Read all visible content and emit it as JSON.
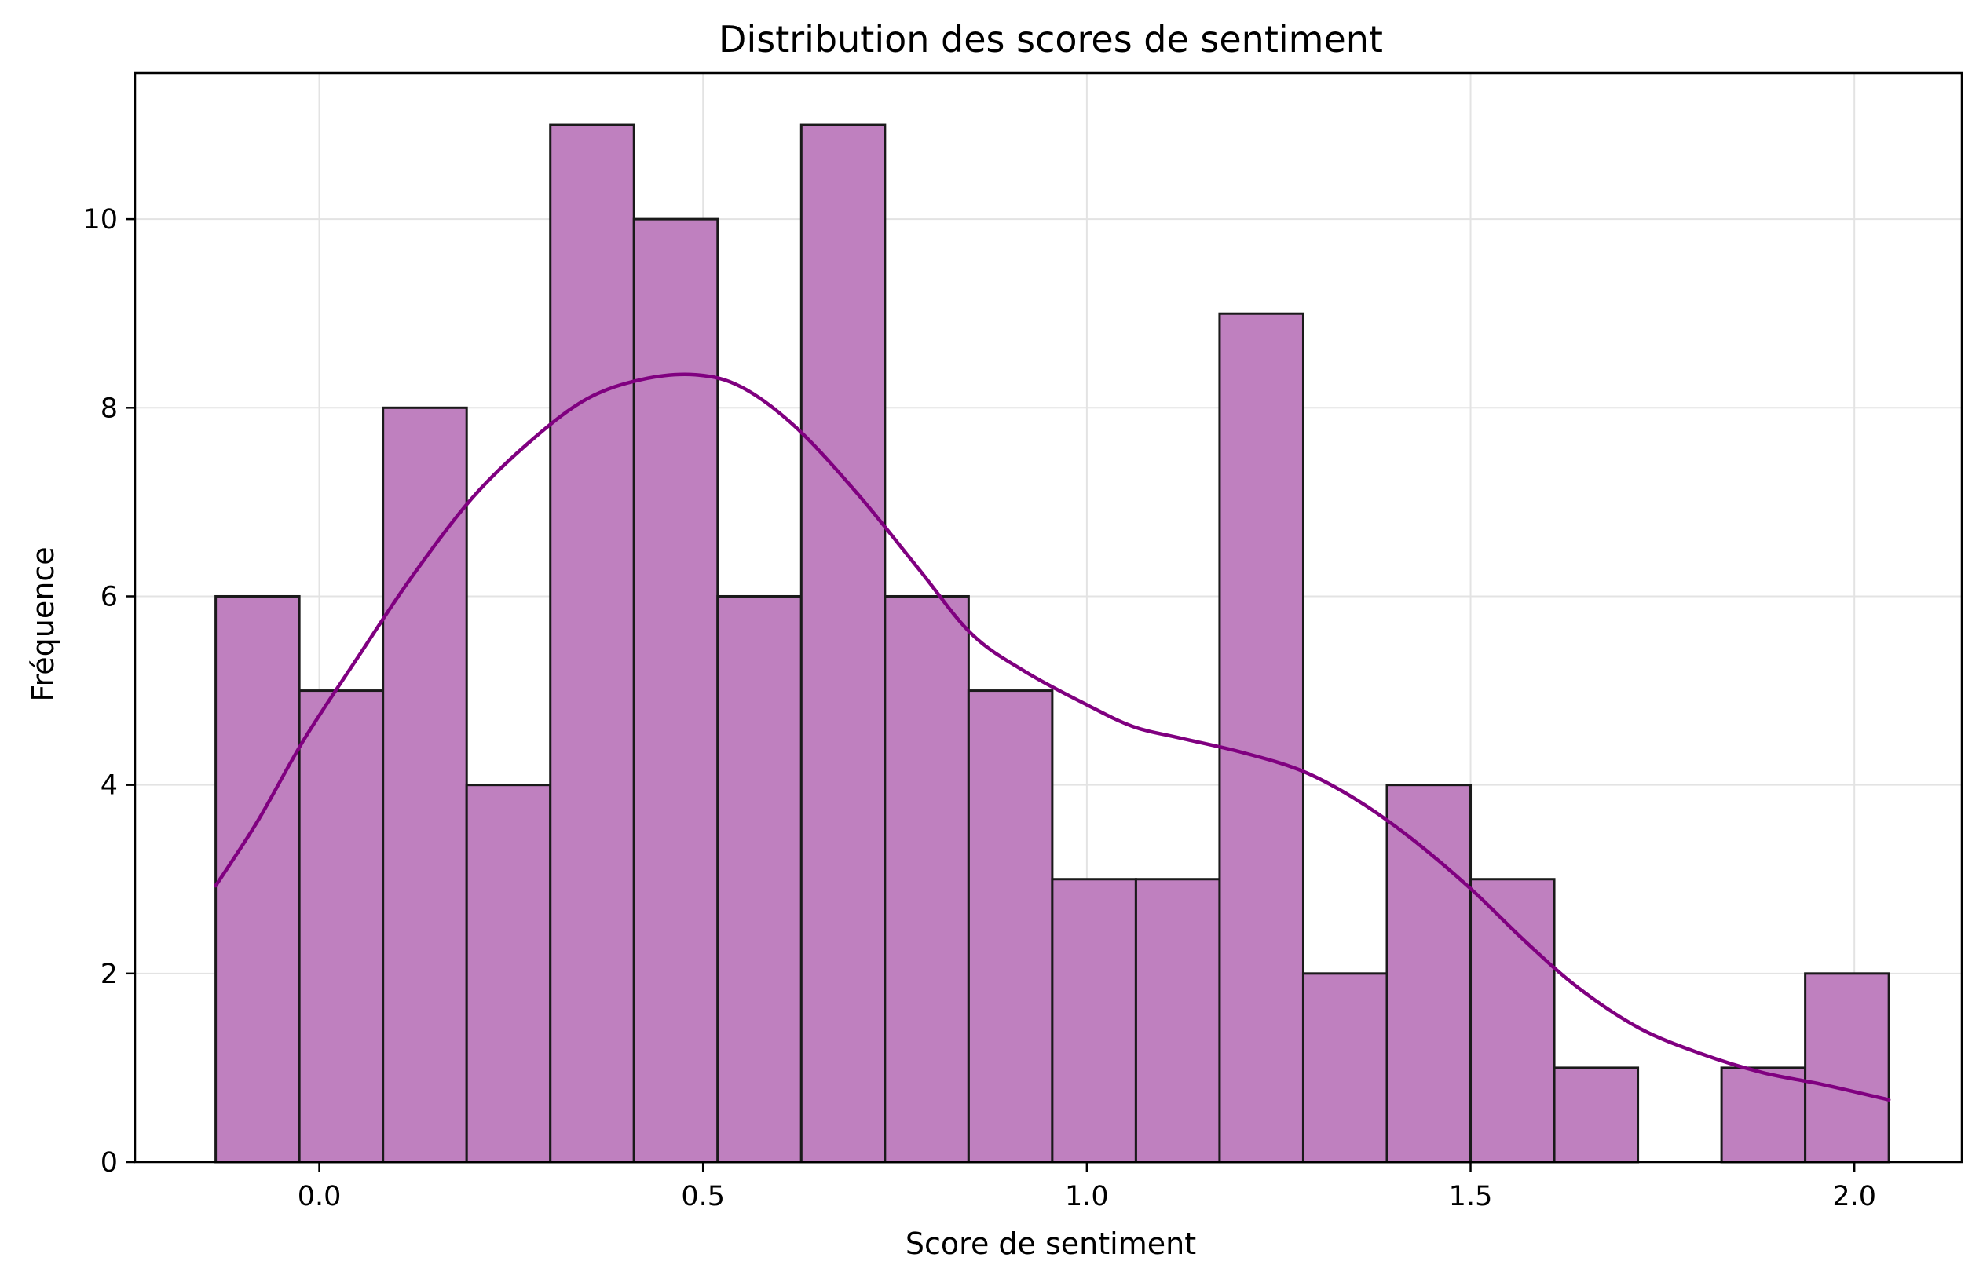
{
  "chart_data": {
    "type": "bar",
    "title": "Distribution des scores de sentiment",
    "xlabel": "Score de sentiment",
    "ylabel": "Fréquence",
    "xlim": [
      -0.24,
      2.14
    ],
    "ylim": [
      0,
      11.55
    ],
    "x_ticks": [
      0.0,
      0.5,
      1.0,
      1.5,
      2.0
    ],
    "x_tick_labels": [
      "0.0",
      "0.5",
      "1.0",
      "1.5",
      "2.0"
    ],
    "y_ticks": [
      0,
      2,
      4,
      6,
      8,
      10
    ],
    "y_tick_labels": [
      "0",
      "2",
      "4",
      "6",
      "8",
      "10"
    ],
    "grid": true,
    "bins": {
      "start": -0.135,
      "end": 2.045,
      "counts": [
        6,
        5,
        8,
        4,
        11,
        10,
        6,
        11,
        6,
        5,
        3,
        3,
        9,
        2,
        4,
        3,
        1,
        0,
        1,
        2
      ]
    },
    "kde": {
      "x": [
        -0.135,
        -0.08,
        -0.02,
        0.05,
        0.12,
        0.2,
        0.28,
        0.35,
        0.42,
        0.49,
        0.55,
        0.62,
        0.7,
        0.78,
        0.85,
        0.92,
        1.0,
        1.06,
        1.12,
        1.2,
        1.28,
        1.35,
        1.42,
        1.5,
        1.57,
        1.64,
        1.72,
        1.8,
        1.88,
        1.96,
        2.045
      ],
      "y": [
        2.93,
        3.62,
        4.48,
        5.35,
        6.2,
        7.05,
        7.68,
        8.1,
        8.3,
        8.35,
        8.22,
        7.8,
        7.1,
        6.3,
        5.6,
        5.2,
        4.85,
        4.62,
        4.5,
        4.35,
        4.15,
        3.85,
        3.45,
        2.9,
        2.35,
        1.85,
        1.42,
        1.15,
        0.95,
        0.82,
        0.66
      ]
    },
    "colors": {
      "bar_fill": "#bf80bf",
      "bar_edge": "#1a1a1a",
      "kde_line": "#800080",
      "grid": "#e3e3e3"
    }
  }
}
